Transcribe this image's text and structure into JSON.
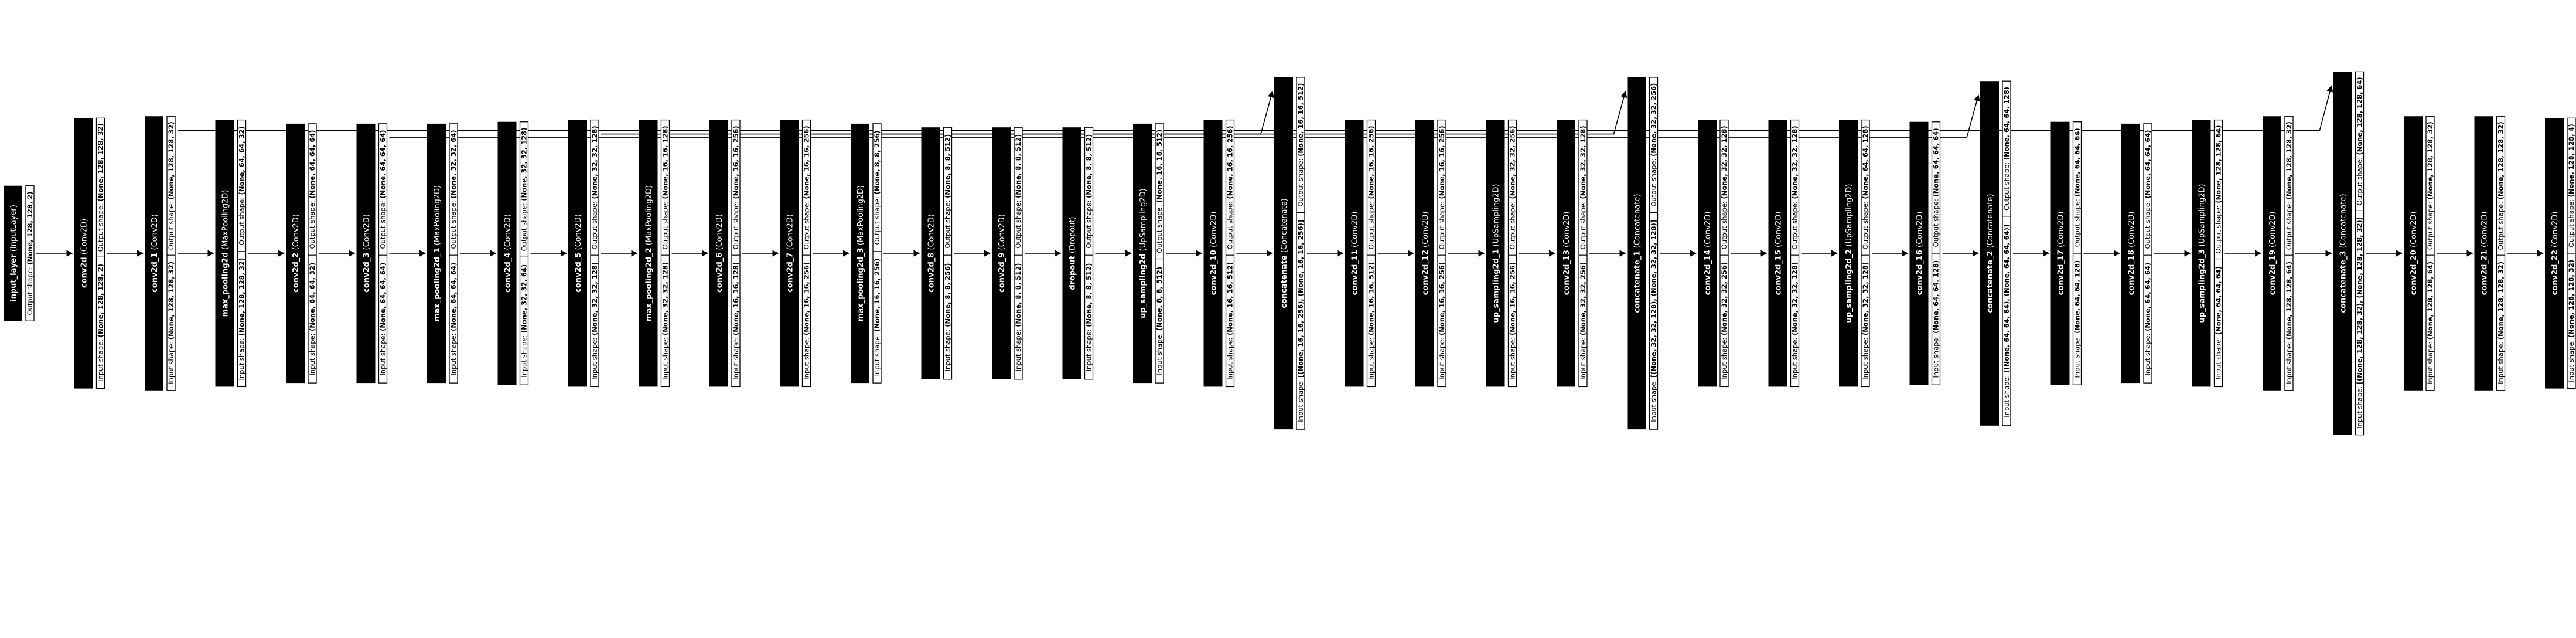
{
  "layers": [
    {
      "name": "input_layer",
      "type": "InputLayer",
      "output_shape": "(None, 128, 128, 2)"
    },
    {
      "name": "conv2d",
      "type": "Conv2D",
      "input_shape": "(None, 128, 128, 2)",
      "output_shape": "(None, 128, 128, 32)"
    },
    {
      "name": "conv2d_1",
      "type": "Conv2D",
      "input_shape": "(None, 128, 128, 32)",
      "output_shape": "(None, 128, 128, 32)"
    },
    {
      "name": "max_pooling2d",
      "type": "MaxPooling2D",
      "input_shape": "(None, 128, 128, 32)",
      "output_shape": "(None, 64, 64, 32)"
    },
    {
      "name": "conv2d_2",
      "type": "Conv2D",
      "input_shape": "(None, 64, 64, 32)",
      "output_shape": "(None, 64, 64, 64)"
    },
    {
      "name": "conv2d_3",
      "type": "Conv2D",
      "input_shape": "(None, 64, 64, 64)",
      "output_shape": "(None, 64, 64, 64)"
    },
    {
      "name": "max_pooling2d_1",
      "type": "MaxPooling2D",
      "input_shape": "(None, 64, 64, 64)",
      "output_shape": "(None, 32, 32, 64)"
    },
    {
      "name": "conv2d_4",
      "type": "Conv2D",
      "input_shape": "(None, 32, 32, 64)",
      "output_shape": "(None, 32, 32, 128)"
    },
    {
      "name": "conv2d_5",
      "type": "Conv2D",
      "input_shape": "(None, 32, 32, 128)",
      "output_shape": "(None, 32, 32, 128)"
    },
    {
      "name": "max_pooling2d_2",
      "type": "MaxPooling2D",
      "input_shape": "(None, 32, 32, 128)",
      "output_shape": "(None, 16, 16, 128)"
    },
    {
      "name": "conv2d_6",
      "type": "Conv2D",
      "input_shape": "(None, 16, 16, 128)",
      "output_shape": "(None, 16, 16, 256)"
    },
    {
      "name": "conv2d_7",
      "type": "Conv2D",
      "input_shape": "(None, 16, 16, 256)",
      "output_shape": "(None, 16, 16, 256)"
    },
    {
      "name": "max_pooling2d_3",
      "type": "MaxPooling2D",
      "input_shape": "(None, 16, 16, 256)",
      "output_shape": "(None, 8, 8, 256)"
    },
    {
      "name": "conv2d_8",
      "type": "Conv2D",
      "input_shape": "(None, 8, 8, 256)",
      "output_shape": "(None, 8, 8, 512)"
    },
    {
      "name": "conv2d_9",
      "type": "Conv2D",
      "input_shape": "(None, 8, 8, 512)",
      "output_shape": "(None, 8, 8, 512)"
    },
    {
      "name": "dropout",
      "type": "Dropout",
      "input_shape": "(None, 8, 8, 512)",
      "output_shape": "(None, 8, 8, 512)"
    },
    {
      "name": "up_sampling2d",
      "type": "UpSampling2D",
      "input_shape": "(None, 8, 8, 512)",
      "output_shape": "(None, 16, 16, 512)"
    },
    {
      "name": "conv2d_10",
      "type": "Conv2D",
      "input_shape": "(None, 16, 16, 512)",
      "output_shape": "(None, 16, 16, 256)"
    },
    {
      "name": "concatenate",
      "type": "Concatenate",
      "input_shape": "[(None, 16, 16, 256), (None, 16, 16, 256)]",
      "output_shape": "(None, 16, 16, 512)"
    },
    {
      "name": "conv2d_11",
      "type": "Conv2D",
      "input_shape": "(None, 16, 16, 512)",
      "output_shape": "(None, 16, 16, 256)"
    },
    {
      "name": "conv2d_12",
      "type": "Conv2D",
      "input_shape": "(None, 16, 16, 256)",
      "output_shape": "(None, 16, 16, 256)"
    },
    {
      "name": "up_sampling2d_1",
      "type": "UpSampling2D",
      "input_shape": "(None, 16, 16, 256)",
      "output_shape": "(None, 32, 32, 256)"
    },
    {
      "name": "conv2d_13",
      "type": "Conv2D",
      "input_shape": "(None, 32, 32, 256)",
      "output_shape": "(None, 32, 32, 128)"
    },
    {
      "name": "concatenate_1",
      "type": "Concatenate",
      "input_shape": "[(None, 32, 32, 128), (None, 32, 32, 128)]",
      "output_shape": "(None, 32, 32, 256)"
    },
    {
      "name": "conv2d_14",
      "type": "Conv2D",
      "input_shape": "(None, 32, 32, 256)",
      "output_shape": "(None, 32, 32, 128)"
    },
    {
      "name": "conv2d_15",
      "type": "Conv2D",
      "input_shape": "(None, 32, 32, 128)",
      "output_shape": "(None, 32, 32, 128)"
    },
    {
      "name": "up_sampling2d_2",
      "type": "UpSampling2D",
      "input_shape": "(None, 32, 32, 128)",
      "output_shape": "(None, 64, 64, 128)"
    },
    {
      "name": "conv2d_16",
      "type": "Conv2D",
      "input_shape": "(None, 64, 64, 128)",
      "output_shape": "(None, 64, 64, 64)"
    },
    {
      "name": "concatenate_2",
      "type": "Concatenate",
      "input_shape": "[(None, 64, 64, 64), (None, 64, 64, 64)]",
      "output_shape": "(None, 64, 64, 128)"
    },
    {
      "name": "conv2d_17",
      "type": "Conv2D",
      "input_shape": "(None, 64, 64, 128)",
      "output_shape": "(None, 64, 64, 64)"
    },
    {
      "name": "conv2d_18",
      "type": "Conv2D",
      "input_shape": "(None, 64, 64, 64)",
      "output_shape": "(None, 64, 64, 64)"
    },
    {
      "name": "up_sampling2d_3",
      "type": "UpSampling2D",
      "input_shape": "(None, 64, 64, 64)",
      "output_shape": "(None, 128, 128, 64)"
    },
    {
      "name": "conv2d_19",
      "type": "Conv2D",
      "input_shape": "(None, 128, 128, 64)",
      "output_shape": "(None, 128, 128, 32)"
    },
    {
      "name": "concatenate_3",
      "type": "Concatenate",
      "input_shape": "[(None, 128, 128, 32), (None, 128, 128, 32)]",
      "output_shape": "(None, 128, 128, 64)"
    },
    {
      "name": "conv2d_20",
      "type": "Conv2D",
      "input_shape": "(None, 128, 128, 64)",
      "output_shape": "(None, 128, 128, 32)"
    },
    {
      "name": "conv2d_21",
      "type": "Conv2D",
      "input_shape": "(None, 128, 128, 32)",
      "output_shape": "(None, 128, 128, 32)"
    },
    {
      "name": "conv2d_22",
      "type": "Conv2D",
      "input_shape": "(None, 128, 128, 32)",
      "output_shape": "(None, 128, 128, 4)"
    }
  ],
  "skip_connections": [
    {
      "from": "conv2d_1",
      "to": "concatenate_3"
    },
    {
      "from": "conv2d_3",
      "to": "concatenate_2"
    },
    {
      "from": "conv2d_5",
      "to": "concatenate_1"
    },
    {
      "from": "conv2d_7",
      "to": "concatenate"
    }
  ],
  "colors": {
    "node_label_bg": "#000000",
    "node_label_text": "#ffffff",
    "node_shape_bg": "#ffffff",
    "edge": "#000000"
  }
}
